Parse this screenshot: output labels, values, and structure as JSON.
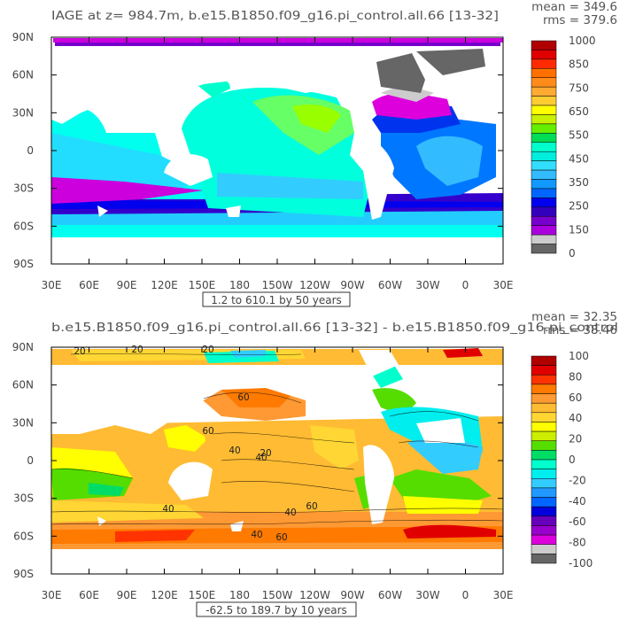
{
  "chart_data": [
    {
      "type": "heatmap",
      "title": "IAGE at z= 984.7m, b.e15.B1850.f09_g16.pi_control.all.66 [13-32]",
      "stat_mean": "mean = 349.6",
      "stat_rms": "rms = 379.6",
      "contour_info": "1.2 to 610.1 by 50 years",
      "x_ticks": [
        "30E",
        "60E",
        "90E",
        "120E",
        "150E",
        "180",
        "150W",
        "120W",
        "90W",
        "60W",
        "30W",
        "0",
        "30E"
      ],
      "y_ticks": [
        "90N",
        "60N",
        "30N",
        "0",
        "30S",
        "60S",
        "90S"
      ],
      "ylim": [
        -90,
        90
      ],
      "colorbar": {
        "labels": [
          "1000",
          "850",
          "750",
          "650",
          "550",
          "450",
          "350",
          "250",
          "150",
          "0"
        ],
        "colors": [
          "#b00000",
          "#e00000",
          "#ff2a00",
          "#ff7000",
          "#ff8c1a",
          "#ffaa33",
          "#ffcc33",
          "#ffff00",
          "#c8f000",
          "#66ee00",
          "#00dd55",
          "#00ffcc",
          "#00eedd",
          "#33ddff",
          "#33bbff",
          "#1199ff",
          "#0066ff",
          "#0000ee",
          "#3300bb",
          "#7700cc",
          "#aa00dd",
          "#cccccc",
          "#666666"
        ]
      }
    },
    {
      "type": "heatmap",
      "title": "b.e15.B1850.f09_g16.pi_control.all.66 [13-32] - b.e15.B1850.f09_g16.pi_control",
      "stat_mean": "mean = 32.35",
      "stat_rms": "rms = 38.46",
      "contour_info": "-62.5 to 189.7 by 10 years",
      "x_ticks": [
        "30E",
        "60E",
        "90E",
        "120E",
        "150E",
        "180",
        "150W",
        "120W",
        "90W",
        "60W",
        "30W",
        "0",
        "30E"
      ],
      "y_ticks": [
        "90N",
        "60N",
        "30N",
        "0",
        "30S",
        "60S",
        "90S"
      ],
      "ylim": [
        -90,
        90
      ],
      "contour_labels": [
        "20",
        "20",
        "20",
        "60",
        "60",
        "40",
        "40",
        "40",
        "20",
        "40",
        "40",
        "60",
        "60"
      ],
      "colorbar": {
        "labels": [
          "100",
          "80",
          "60",
          "40",
          "20",
          "0",
          "-20",
          "-40",
          "-60",
          "-80",
          "-100"
        ],
        "colors": [
          "#b00000",
          "#e00000",
          "#ff3300",
          "#ff7a00",
          "#ff9933",
          "#ffbb33",
          "#ffd633",
          "#ffff00",
          "#ccee00",
          "#55dd00",
          "#00dd66",
          "#00ffcc",
          "#00eeee",
          "#33ccff",
          "#2299ff",
          "#0066ff",
          "#0000dd",
          "#6600bb",
          "#9900cc",
          "#dd00dd",
          "#cccccc",
          "#666666"
        ]
      }
    }
  ]
}
